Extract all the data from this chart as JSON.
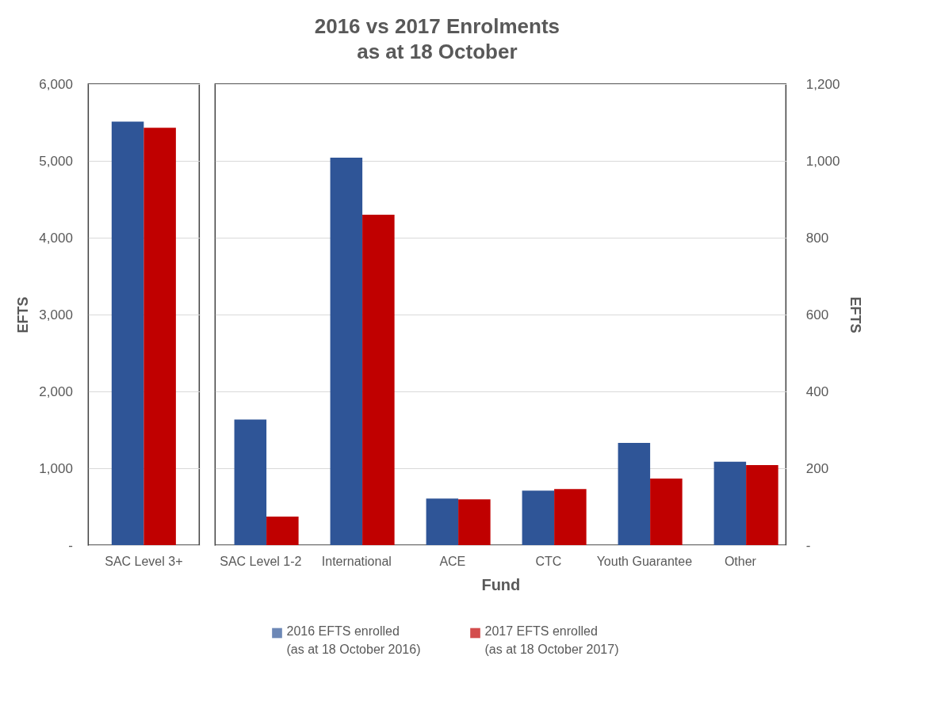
{
  "chart_data": [
    {
      "type": "bar",
      "ylabel": "EFTS",
      "categories": [
        "SAC Level 3+"
      ],
      "legend": "bottom",
      "series": [
        {
          "name": "2016 EFTS enrolled (as at 18 October 2016)",
          "color": "#2f5597",
          "values": [
            5510
          ]
        },
        {
          "name": "2017 EFTS enrolled (as at 18 October 2017)",
          "color": "#c00000",
          "values": [
            5430
          ]
        }
      ],
      "ylim": [
        0,
        6000
      ],
      "yticks": [
        {
          "value": 0,
          "label": "-"
        },
        {
          "value": 1000,
          "label": "1,000"
        },
        {
          "value": 2000,
          "label": "2,000"
        },
        {
          "value": 3000,
          "label": "3,000"
        },
        {
          "value": 4000,
          "label": "4,000"
        },
        {
          "value": 5000,
          "label": "5,000"
        },
        {
          "value": 6000,
          "label": "6,000"
        }
      ],
      "grid": "y"
    },
    {
      "type": "bar",
      "title": "2016 vs 2017 Enrolments\nas at 18 October",
      "xlabel": "Fund",
      "y2label": "EFTS",
      "categories": [
        "SAC Level 1-2",
        "International",
        "ACE",
        "CTC",
        "Youth Guarantee",
        "Other"
      ],
      "series": [
        {
          "name": "2016 EFTS enrolled (as at 18 October 2016)",
          "color": "#2f5597",
          "axis": "y2",
          "values": [
            327,
            1008,
            121,
            142,
            266,
            217
          ]
        },
        {
          "name": "2017 EFTS enrolled (as at 18 October 2017)",
          "color": "#c00000",
          "axis": "y2",
          "values": [
            74,
            860,
            119,
            146,
            173,
            208
          ]
        }
      ],
      "y2lim": [
        0,
        1200
      ],
      "y2ticks": [
        {
          "value": 0,
          "label": "-"
        },
        200,
        400,
        600,
        800,
        {
          "value": 1000,
          "label": "1,000"
        },
        {
          "value": 1200,
          "label": "1,200"
        }
      ],
      "grid": "y",
      "legend": "bottom"
    }
  ]
}
